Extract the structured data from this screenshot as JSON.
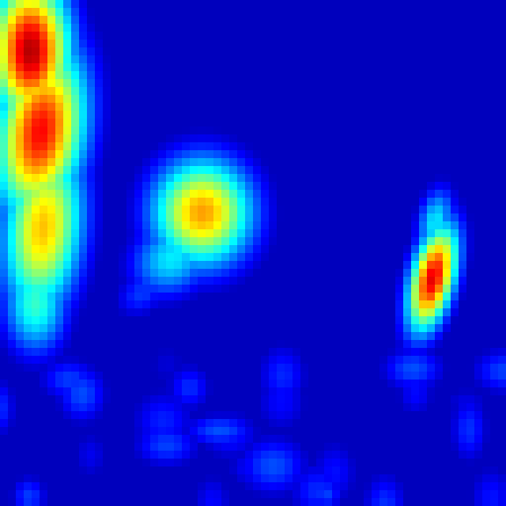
{
  "image": {
    "kind": "pseudocolor heatmap",
    "colormap": "jet",
    "background_color": "#00008f",
    "colormap_stops": [
      "#00008f",
      "#0000ff",
      "#00ffff",
      "#ffff00",
      "#ff0000",
      "#800000"
    ],
    "regions": [
      {
        "name": "left-vertical-blob",
        "peak_level": 0.95
      },
      {
        "name": "center-round-blob",
        "peak_level": 0.72
      },
      {
        "name": "right-narrow-blob",
        "peak_level": 0.9
      },
      {
        "name": "bottom-faint-speckles",
        "peak_level": 0.22
      }
    ]
  }
}
